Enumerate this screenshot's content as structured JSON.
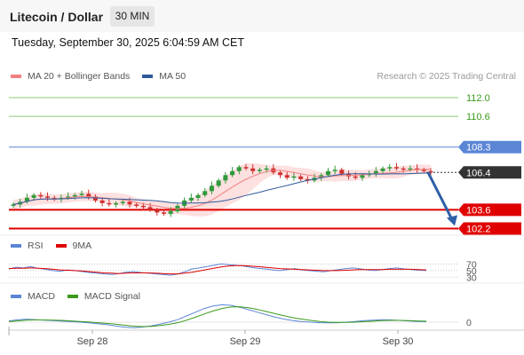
{
  "header": {
    "title": "Litecoin / Dollar",
    "interval": "30 MIN",
    "datetime": "Tuesday, September 30, 2025 6:04:59 AM CET"
  },
  "legends": {
    "price": [
      {
        "label": "MA 20 + Bollinger Bands",
        "color": "#f08080"
      },
      {
        "label": "MA 50",
        "color": "#2e5a9c"
      }
    ],
    "rsi": [
      {
        "label": "RSI",
        "color": "#5b86d6"
      },
      {
        "label": "9MA",
        "color": "#e00000"
      }
    ],
    "macd": [
      {
        "label": "MACD",
        "color": "#5b86d6"
      },
      {
        "label": "MACD Signal",
        "color": "#3a9a1a"
      }
    ]
  },
  "copyright": "Research © 2025 Trading Central",
  "colors": {
    "up_candle": "#2e9a3a",
    "down_candle": "#d03030",
    "bollinger_fill": "#fde0e0",
    "resistance": "#8fc870",
    "pivot_blue": "#5b86d6",
    "support_red": "#e00000",
    "current_price_badge": "#333333",
    "forecast_arrow": "#2e5fa8"
  },
  "chart_data": [
    {
      "type": "line",
      "panel": "price",
      "x_ticks": [
        "Sep 28",
        "Sep 29",
        "Sep 30"
      ],
      "price_range": [
        101.5,
        113.0
      ],
      "levels": [
        {
          "value": 112.0,
          "label": "112.0",
          "kind": "resistance"
        },
        {
          "value": 110.6,
          "label": "110.6",
          "kind": "resistance"
        },
        {
          "value": 108.3,
          "label": "108.3",
          "kind": "pivot"
        },
        {
          "value": 106.4,
          "label": "106.4",
          "kind": "current"
        },
        {
          "value": 103.6,
          "label": "103.6",
          "kind": "support"
        },
        {
          "value": 102.2,
          "label": "102.2",
          "kind": "support"
        }
      ],
      "current_price": 106.4,
      "forecast": {
        "from": 106.4,
        "to": 102.2,
        "direction": "down"
      },
      "close_series": [
        104.0,
        104.2,
        104.5,
        104.7,
        104.6,
        104.5,
        104.4,
        104.5,
        104.6,
        104.7,
        104.8,
        104.6,
        104.3,
        104.1,
        104.0,
        104.1,
        104.2,
        104.0,
        103.9,
        103.8,
        103.6,
        103.4,
        103.3,
        103.5,
        103.9,
        104.3,
        104.5,
        104.7,
        105.0,
        105.4,
        105.8,
        106.2,
        106.5,
        106.8,
        106.7,
        106.5,
        106.6,
        106.7,
        106.4,
        106.2,
        106.0,
        106.1,
        105.9,
        105.8,
        106.0,
        106.2,
        106.5,
        106.6,
        106.3,
        106.1,
        106.0,
        106.2,
        106.3,
        106.5,
        106.7,
        106.8,
        106.7,
        106.6,
        106.7,
        106.6,
        106.5,
        106.4
      ]
    },
    {
      "type": "line",
      "panel": "RSI",
      "y_ticks": [
        70,
        50,
        30
      ],
      "series": [
        {
          "name": "RSI",
          "values": [
            55,
            60,
            58,
            62,
            57,
            54,
            50,
            48,
            52,
            50,
            47,
            44,
            42,
            40,
            38,
            41,
            45,
            47,
            44,
            42,
            40,
            38,
            36,
            39,
            46,
            55,
            58,
            62,
            66,
            70,
            68,
            66,
            64,
            60,
            57,
            55,
            52,
            50,
            53,
            56,
            52,
            50,
            48,
            46,
            50,
            53,
            56,
            58,
            55,
            52,
            50,
            53,
            56,
            58,
            55,
            53,
            51,
            50
          ]
        },
        {
          "name": "9MA",
          "values": [
            56,
            57,
            57,
            58,
            57,
            56,
            54,
            52,
            51,
            50,
            49,
            47,
            45,
            43,
            42,
            41,
            42,
            43,
            43,
            43,
            42,
            41,
            40,
            40,
            42,
            45,
            49,
            53,
            57,
            61,
            64,
            65,
            65,
            64,
            62,
            60,
            58,
            56,
            55,
            54,
            53,
            52,
            51,
            50,
            50,
            50,
            51,
            52,
            53,
            53,
            53,
            53,
            54,
            54,
            54,
            54,
            53,
            52
          ]
        }
      ]
    },
    {
      "type": "line",
      "panel": "MACD",
      "y_ticks": [
        0
      ],
      "series": [
        {
          "name": "MACD",
          "values": [
            0.05,
            0.1,
            0.12,
            0.1,
            0.08,
            0.06,
            0.04,
            0.02,
            0.0,
            -0.03,
            -0.06,
            -0.1,
            -0.15,
            -0.2,
            -0.22,
            -0.2,
            -0.15,
            -0.08,
            0.0,
            0.1,
            0.25,
            0.4,
            0.55,
            0.65,
            0.7,
            0.68,
            0.6,
            0.5,
            0.4,
            0.3,
            0.2,
            0.12,
            0.06,
            0.02,
            0.0,
            -0.02,
            -0.03,
            -0.02,
            0.0,
            0.03,
            0.06,
            0.08,
            0.1,
            0.09,
            0.07,
            0.05,
            0.03,
            0.02
          ]
        },
        {
          "name": "MACD Signal",
          "values": [
            0.02,
            0.05,
            0.08,
            0.09,
            0.09,
            0.08,
            0.07,
            0.05,
            0.03,
            0.01,
            -0.02,
            -0.05,
            -0.08,
            -0.12,
            -0.16,
            -0.18,
            -0.17,
            -0.14,
            -0.09,
            -0.02,
            0.08,
            0.2,
            0.33,
            0.45,
            0.55,
            0.61,
            0.62,
            0.58,
            0.51,
            0.43,
            0.34,
            0.26,
            0.18,
            0.12,
            0.07,
            0.03,
            0.0,
            -0.01,
            -0.01,
            0.0,
            0.02,
            0.04,
            0.06,
            0.07,
            0.07,
            0.06,
            0.05,
            0.04
          ]
        }
      ]
    }
  ]
}
